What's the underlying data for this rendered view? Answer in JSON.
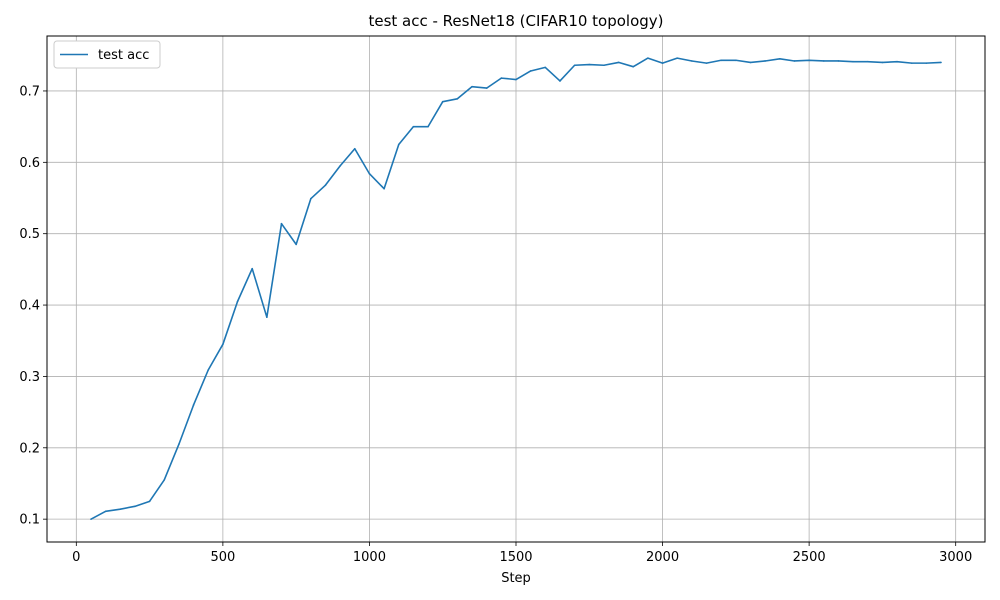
{
  "chart_data": {
    "type": "line",
    "title": "test acc - ResNet18 (CIFAR10 topology)",
    "xlabel": "Step",
    "ylabel": "",
    "xlim": [
      -100,
      3100
    ],
    "ylim": [
      0.068,
      0.777
    ],
    "xticks": [
      0,
      500,
      1000,
      1500,
      2000,
      2500,
      3000
    ],
    "xtick_labels": [
      "0",
      "500",
      "1000",
      "1500",
      "2000",
      "2500",
      "3000"
    ],
    "yticks": [
      0.1,
      0.2,
      0.3,
      0.4,
      0.5,
      0.6,
      0.7
    ],
    "ytick_labels": [
      "0.1",
      "0.2",
      "0.3",
      "0.4",
      "0.5",
      "0.6",
      "0.7"
    ],
    "grid": true,
    "legend_position": "top-left",
    "series": [
      {
        "name": "test acc",
        "color": "#1f77b4",
        "x": [
          50,
          100,
          150,
          200,
          250,
          300,
          350,
          400,
          450,
          500,
          550,
          600,
          650,
          700,
          750,
          800,
          850,
          900,
          950,
          1000,
          1050,
          1100,
          1150,
          1200,
          1250,
          1300,
          1350,
          1400,
          1450,
          1500,
          1550,
          1600,
          1650,
          1700,
          1750,
          1800,
          1850,
          1900,
          1950,
          2000,
          2050,
          2100,
          2150,
          2200,
          2250,
          2300,
          2350,
          2400,
          2450,
          2500,
          2550,
          2600,
          2650,
          2700,
          2750,
          2800,
          2850,
          2900,
          2950
        ],
        "y": [
          0.1,
          0.111,
          0.114,
          0.118,
          0.125,
          0.155,
          0.205,
          0.26,
          0.309,
          0.345,
          0.405,
          0.451,
          0.383,
          0.514,
          0.485,
          0.549,
          0.568,
          0.595,
          0.619,
          0.584,
          0.563,
          0.625,
          0.65,
          0.65,
          0.685,
          0.689,
          0.706,
          0.704,
          0.718,
          0.716,
          0.728,
          0.733,
          0.714,
          0.736,
          0.737,
          0.736,
          0.74,
          0.734,
          0.746,
          0.739,
          0.746,
          0.742,
          0.739,
          0.743,
          0.743,
          0.74,
          0.742,
          0.745,
          0.742,
          0.743,
          0.742,
          0.742,
          0.741,
          0.741,
          0.74,
          0.741,
          0.739,
          0.739,
          0.74
        ]
      }
    ]
  }
}
